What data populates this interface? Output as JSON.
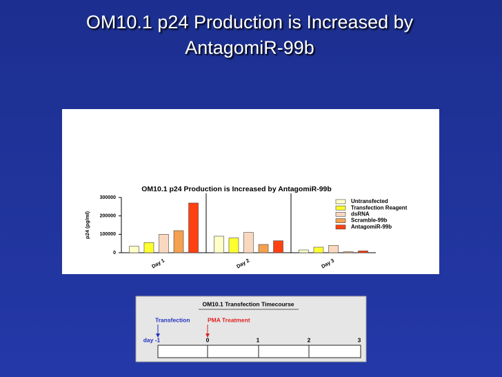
{
  "slide_title": [
    "OM10.1 p24 Production is Increased by",
    "AntagomiR-99b"
  ],
  "chart_data": {
    "type": "bar",
    "title": "OM10.1 p24 Production is Increased by AntagomiR-99b",
    "y_label": "p24 (pg/ml)",
    "categories": [
      "Day 1",
      "Day 2",
      "Day 3"
    ],
    "series": [
      {
        "name": "Untransfected",
        "color": "#ffffc8",
        "values": [
          35000,
          90000,
          15000
        ]
      },
      {
        "name": "Transfection Reagent",
        "color": "#ffff30",
        "values": [
          55000,
          80000,
          30000
        ]
      },
      {
        "name": "dsRNA",
        "color": "#fad8c0",
        "values": [
          100000,
          110000,
          40000
        ]
      },
      {
        "name": "Scramble-99b",
        "color": "#f4a050",
        "values": [
          120000,
          45000,
          5000
        ]
      },
      {
        "name": "AntagomiR-99b",
        "color": "#ff4010",
        "values": [
          270000,
          65000,
          10000
        ]
      }
    ],
    "ylim": [
      0,
      300000
    ],
    "yticks": [
      0,
      100000,
      200000,
      300000
    ],
    "grid": false,
    "legend": "upper right"
  },
  "timeline": {
    "title": "OM10.1 Transfection Timecourse",
    "events": [
      {
        "label": "Transfection",
        "color": "#2030c0"
      },
      {
        "label": "PMA Treatment",
        "color": "#e02020"
      }
    ],
    "days": [
      "day -1",
      "0",
      "1",
      "2",
      "3"
    ]
  }
}
